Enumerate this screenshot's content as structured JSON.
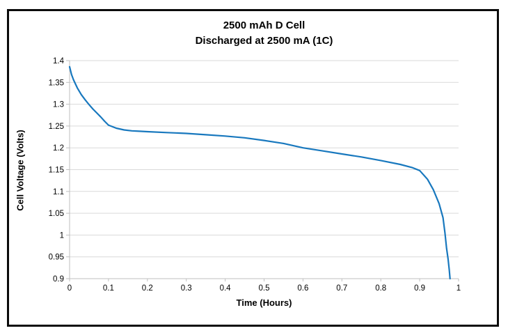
{
  "window": {
    "background": "#ffffff",
    "frame_border_color": "#0b0b0b"
  },
  "chart_data": {
    "type": "line",
    "title": "2500 mAh D Cell",
    "subtitle": "Discharged at 2500 mA (1C)",
    "xlabel": "Time (Hours)",
    "ylabel": "Cell Voltage (Volts)",
    "xlim": [
      0,
      1
    ],
    "ylim": [
      0.9,
      1.4
    ],
    "x_ticks": [
      0,
      0.1,
      0.2,
      0.3,
      0.4,
      0.5,
      0.6,
      0.7,
      0.8,
      0.9,
      1
    ],
    "y_ticks": [
      0.9,
      0.95,
      1,
      1.05,
      1.1,
      1.15,
      1.2,
      1.25,
      1.3,
      1.35,
      1.4
    ],
    "grid": "horizontal",
    "legend_position": "none",
    "colors": {
      "line": "#1878be",
      "gridline": "#d9d9d9",
      "axis": "#bfbfbf",
      "text": "#000000"
    },
    "series": [
      {
        "name": "Cell Voltage",
        "x": [
          0,
          0.005,
          0.01,
          0.02,
          0.03,
          0.04,
          0.05,
          0.06,
          0.07,
          0.08,
          0.09,
          0.1,
          0.12,
          0.14,
          0.16,
          0.18,
          0.2,
          0.25,
          0.3,
          0.35,
          0.4,
          0.45,
          0.5,
          0.55,
          0.6,
          0.65,
          0.7,
          0.75,
          0.8,
          0.85,
          0.88,
          0.9,
          0.92,
          0.935,
          0.95,
          0.96,
          0.965,
          0.969,
          0.973,
          0.976,
          0.978
        ],
        "y": [
          1.386,
          1.368,
          1.356,
          1.337,
          1.322,
          1.31,
          1.299,
          1.289,
          1.28,
          1.271,
          1.261,
          1.252,
          1.245,
          1.241,
          1.239,
          1.238,
          1.237,
          1.235,
          1.233,
          1.23,
          1.227,
          1.223,
          1.217,
          1.21,
          1.2,
          1.193,
          1.186,
          1.179,
          1.171,
          1.162,
          1.155,
          1.148,
          1.128,
          1.104,
          1.072,
          1.04,
          1.005,
          0.97,
          0.945,
          0.92,
          0.9
        ]
      }
    ]
  }
}
